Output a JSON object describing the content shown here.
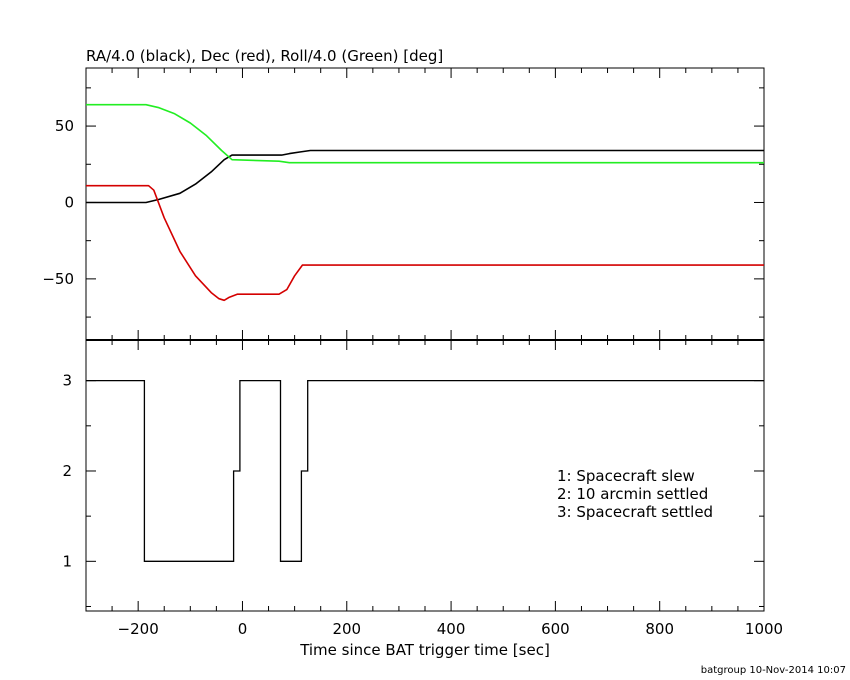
{
  "chart_data": [
    {
      "type": "line",
      "title": "RA/4.0 (black), Dec (red), Roll/4.0 (Green) [deg]",
      "xlim": [
        -300,
        1000
      ],
      "ylim": [
        -90,
        88
      ],
      "yticks": [
        50,
        0,
        -50
      ],
      "ytick_labels": [
        "50",
        "0",
        "−50"
      ],
      "series": [
        {
          "color": "#000000",
          "points": [
            [
              -300,
              0
            ],
            [
              -185,
              0
            ],
            [
              -160,
              2
            ],
            [
              -120,
              6
            ],
            [
              -90,
              12
            ],
            [
              -60,
              20
            ],
            [
              -35,
              28
            ],
            [
              -20,
              31
            ],
            [
              75,
              31
            ],
            [
              90,
              32
            ],
            [
              110,
              33
            ],
            [
              130,
              34
            ],
            [
              1000,
              34
            ]
          ]
        },
        {
          "color": "#d40000",
          "points": [
            [
              -300,
              11
            ],
            [
              -180,
              11
            ],
            [
              -170,
              8
            ],
            [
              -150,
              -10
            ],
            [
              -120,
              -32
            ],
            [
              -90,
              -48
            ],
            [
              -60,
              -59
            ],
            [
              -45,
              -63
            ],
            [
              -35,
              -64
            ],
            [
              -25,
              -62
            ],
            [
              -10,
              -60
            ],
            [
              70,
              -60
            ],
            [
              85,
              -57
            ],
            [
              100,
              -48
            ],
            [
              115,
              -41
            ],
            [
              1000,
              -41
            ]
          ]
        },
        {
          "color": "#22ee22",
          "points": [
            [
              -300,
              64
            ],
            [
              -185,
              64
            ],
            [
              -160,
              62
            ],
            [
              -130,
              58
            ],
            [
              -100,
              52
            ],
            [
              -70,
              44
            ],
            [
              -40,
              34
            ],
            [
              -20,
              28
            ],
            [
              70,
              27
            ],
            [
              90,
              26
            ],
            [
              1000,
              26
            ]
          ]
        }
      ]
    },
    {
      "type": "line",
      "xlabel": "Time since BAT trigger time [sec]",
      "xlim": [
        -300,
        1000
      ],
      "ylim": [
        0.45,
        3.45
      ],
      "xticks": [
        -200,
        0,
        200,
        400,
        600,
        800,
        1000
      ],
      "xtick_labels": [
        "−200",
        "0",
        "200",
        "400",
        "600",
        "800",
        "1000"
      ],
      "yticks": [
        3,
        2,
        1
      ],
      "ytick_labels": [
        "3",
        "2",
        "1"
      ],
      "legend": [
        "1: Spacecraft slew",
        "2: 10 arcmin settled",
        "3: Spacecraft settled"
      ],
      "series": [
        {
          "color": "#000000",
          "step_points": [
            [
              -300,
              3
            ],
            [
              -188,
              1
            ],
            [
              -17,
              2
            ],
            [
              -5,
              3
            ],
            [
              73,
              1
            ],
            [
              113,
              2
            ],
            [
              125,
              3
            ],
            [
              1000,
              3
            ]
          ]
        }
      ]
    }
  ],
  "footer": "batgroup 10-Nov-2014 10:07"
}
